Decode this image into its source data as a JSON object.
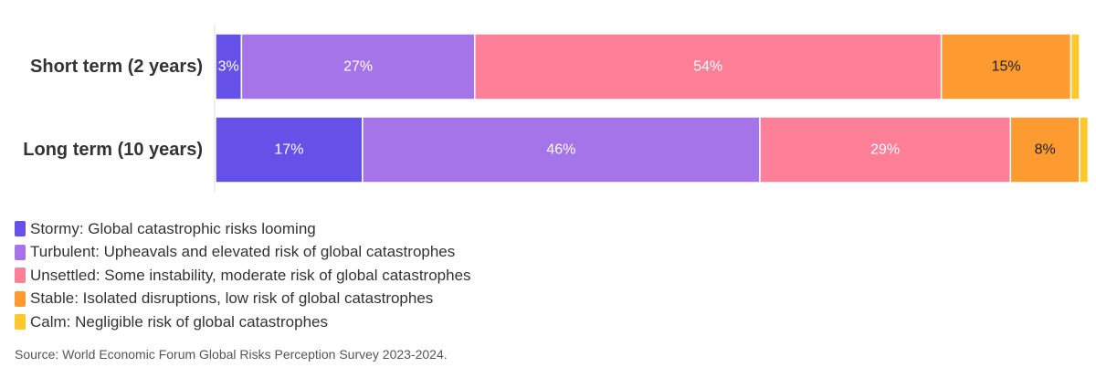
{
  "chart_data": {
    "type": "bar",
    "orientation": "horizontal",
    "stacked": true,
    "categories": [
      "Short term (2 years)",
      "Long term (10 years)"
    ],
    "series": [
      {
        "name": "Stormy: Global catastrophic risks looming",
        "color": "#6551e8",
        "values": [
          3,
          17
        ],
        "labels": [
          "3%",
          "17%"
        ],
        "label_color": "#ffffff"
      },
      {
        "name": "Turbulent: Upheavals and elevated risk of global catastrophes",
        "color": "#a574e9",
        "values": [
          27,
          46
        ],
        "labels": [
          "27%",
          "46%"
        ],
        "label_color": "#ffffff"
      },
      {
        "name": "Unsettled: Some instability, moderate risk of global catastrophes",
        "color": "#fd7f98",
        "values": [
          54,
          29
        ],
        "labels": [
          "54%",
          "29%"
        ],
        "label_color": "#ffffff"
      },
      {
        "name": "Stable: Isolated disruptions, low risk of global catastrophes",
        "color": "#fd9a30",
        "values": [
          15,
          8
        ],
        "labels": [
          "15%",
          "8%"
        ],
        "label_color": "#222222"
      },
      {
        "name": "Calm: Negligible risk of global catastrophes",
        "color": "#fdc82c",
        "values": [
          1,
          1
        ],
        "labels": [
          "",
          ""
        ],
        "label_color": "#222222"
      }
    ],
    "xlim": [
      0,
      100
    ],
    "grid": false,
    "legend_position": "bottom-left"
  },
  "source": "Source: World Economic Forum Global Risks Perception Survey 2023-2024."
}
